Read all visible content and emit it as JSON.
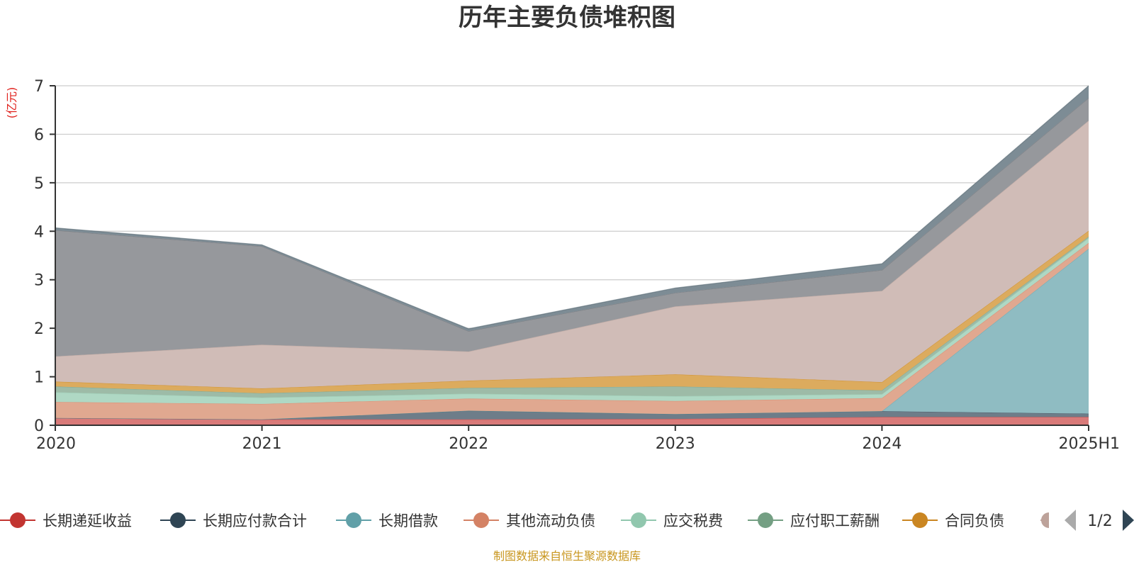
{
  "chart_data": {
    "type": "area",
    "stacked": true,
    "title": "历年主要负债堆积图",
    "unit_label": "(亿元)",
    "source_note": "制图数据来自恒生聚源数据库",
    "categories": [
      "2020",
      "2021",
      "2022",
      "2023",
      "2024",
      "2025H1"
    ],
    "ylim": [
      0,
      7
    ],
    "yticks": [
      0,
      1,
      2,
      3,
      4,
      5,
      6,
      7
    ],
    "grid": true,
    "legend_position": "bottom",
    "legend_page": "1/2",
    "series": [
      {
        "name": "长期递延收益",
        "color": "#c23531",
        "fill": "#d97a79",
        "values": [
          0.15,
          0.12,
          0.12,
          0.13,
          0.17,
          0.17
        ]
      },
      {
        "name": "长期应付款合计",
        "color": "#2f4554",
        "fill": "#6e7d89",
        "values": [
          0.0,
          0.0,
          0.18,
          0.1,
          0.12,
          0.07
        ]
      },
      {
        "name": "长期借款",
        "color": "#61a0a8",
        "fill": "#8fbcc2",
        "values": [
          0.0,
          0.0,
          0.0,
          0.0,
          0.0,
          3.4
        ]
      },
      {
        "name": "其他流动负债",
        "color": "#d48265",
        "fill": "#e0a890",
        "values": [
          0.33,
          0.32,
          0.25,
          0.27,
          0.27,
          0.12
        ]
      },
      {
        "name": "应交税费",
        "color": "#91c7ae",
        "fill": "#afd8c4",
        "values": [
          0.2,
          0.13,
          0.1,
          0.1,
          0.08,
          0.1
        ]
      },
      {
        "name": "应付职工薪酬",
        "color": "#749f83",
        "fill": "#9dbba7",
        "values": [
          0.12,
          0.09,
          0.12,
          0.2,
          0.08,
          0.03
        ]
      },
      {
        "name": "合同负债",
        "color": "#ca8622",
        "fill": "#dcab5e",
        "values": [
          0.1,
          0.1,
          0.15,
          0.25,
          0.17,
          0.12
        ]
      },
      {
        "name": "",
        "color": "#bda29a",
        "fill": "#d0bcb7",
        "values": [
          0.52,
          0.9,
          0.6,
          1.4,
          1.88,
          2.27
        ]
      },
      {
        "name": "",
        "color": "#6e7074",
        "fill": "#96989c",
        "values": [
          2.6,
          2.03,
          0.42,
          0.28,
          0.43,
          0.47
        ]
      },
      {
        "name": "",
        "color": "#546570",
        "fill": "#7d8c95",
        "values": [
          0.05,
          0.03,
          0.05,
          0.1,
          0.13,
          0.25
        ]
      }
    ]
  }
}
